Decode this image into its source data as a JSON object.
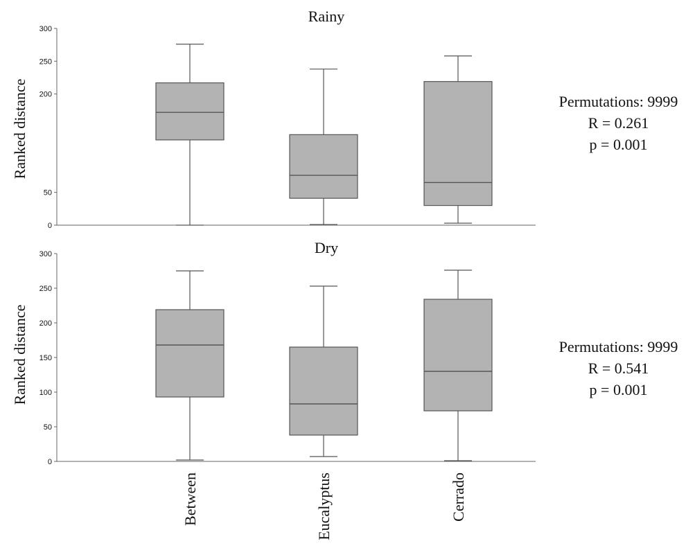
{
  "chart_data": [
    {
      "type": "box",
      "title": "Rainy",
      "ylabel": "Ranked distance",
      "ylim": [
        0,
        300
      ],
      "yticks": [
        0,
        50,
        200,
        250,
        300
      ],
      "categories": [
        "Between",
        "Eucalyptus",
        "Cerrado"
      ],
      "boxes": [
        {
          "category": "Between",
          "min": 0,
          "q1": 130,
          "median": 172,
          "q3": 217,
          "max": 276
        },
        {
          "category": "Eucalyptus",
          "min": 1,
          "q1": 41,
          "median": 76,
          "q3": 138,
          "max": 238
        },
        {
          "category": "Cerrado",
          "min": 3,
          "q1": 30,
          "median": 65,
          "q3": 219,
          "max": 258
        }
      ],
      "annotation": {
        "permutations": "Permutations:  9999",
        "r": "R = 0.261",
        "p": "p = 0.001"
      }
    },
    {
      "type": "box",
      "title": "Dry",
      "ylabel": "Ranked distance",
      "ylim": [
        0,
        300
      ],
      "yticks": [
        0,
        50,
        100,
        150,
        200,
        250,
        300
      ],
      "categories": [
        "Between",
        "Eucalyptus",
        "Cerrado"
      ],
      "boxes": [
        {
          "category": "Between",
          "min": 2,
          "q1": 93,
          "median": 168,
          "q3": 219,
          "max": 275
        },
        {
          "category": "Eucalyptus",
          "min": 7,
          "q1": 38,
          "median": 83,
          "q3": 165,
          "max": 253
        },
        {
          "category": "Cerrado",
          "min": 1,
          "q1": 73,
          "median": 130,
          "q3": 234,
          "max": 276
        }
      ],
      "annotation": {
        "permutations": "Permutations:  9999",
        "r": "R = 0.541",
        "p": "p = 0.001"
      }
    }
  ],
  "colors": {
    "box_fill": "#b3b3b3",
    "line": "#555555",
    "text": "#111111"
  }
}
